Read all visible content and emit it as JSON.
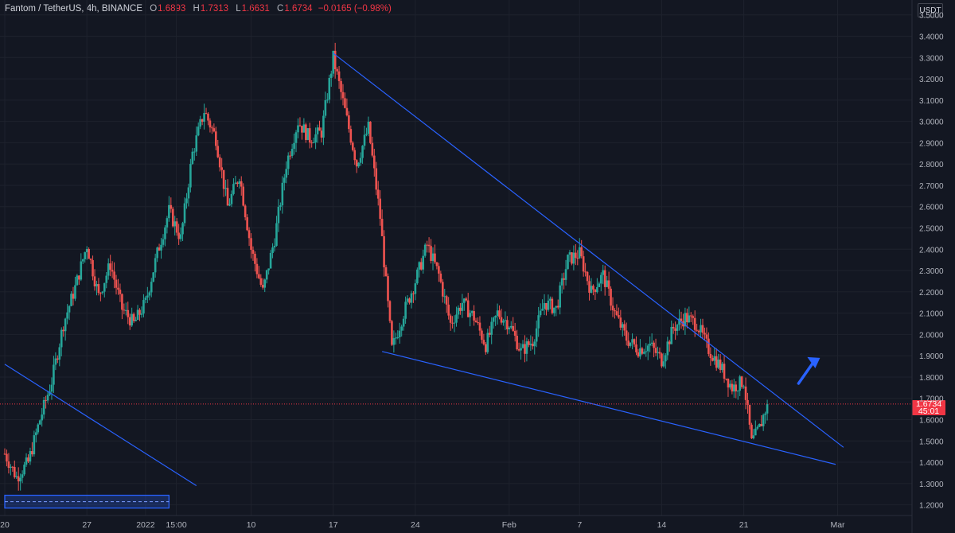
{
  "header": {
    "symbol": "Fantom / TetherUS, 4h, BINANCE",
    "open_label": "O",
    "open": "1.6893",
    "high_label": "H",
    "high": "1.7313",
    "low_label": "L",
    "low": "1.6631",
    "close_label": "C",
    "close": "1.6734",
    "change": "−0.0165 (−0.98%)"
  },
  "currency": "USDT",
  "last_price": {
    "value": "1.6734",
    "countdown": "45:01",
    "color": "#f23645"
  },
  "colors": {
    "background": "#131722",
    "up": "#26a69a",
    "down": "#ef5350",
    "trendline": "#2962ff",
    "grid": "#1e222d",
    "axis_text": "#b2b5be"
  },
  "chart_data": {
    "type": "candlestick",
    "interval": "4h",
    "exchange": "BINANCE",
    "y_axis": {
      "ylim": [
        1.15,
        3.57
      ],
      "ticks": [
        "1.2000",
        "1.3000",
        "1.4000",
        "1.5000",
        "1.6000",
        "1.7000",
        "1.8000",
        "1.9000",
        "2.0000",
        "2.1000",
        "2.2000",
        "2.3000",
        "2.4000",
        "2.5000",
        "2.6000",
        "2.7000",
        "2.8000",
        "2.9000",
        "3.0000",
        "3.1000",
        "3.2000",
        "3.3000",
        "3.4000",
        "3.5000"
      ]
    },
    "x_axis": {
      "start": "2021-12-20",
      "end": "2022-03-03",
      "ticks": [
        {
          "label": "20",
          "date": "2021-12-20T00:00"
        },
        {
          "label": "27",
          "date": "2021-12-27T00:00"
        },
        {
          "label": "2022",
          "date": "2022-01-01T00:00"
        },
        {
          "label": "15:00",
          "date": "2022-01-03T15:00"
        },
        {
          "label": "10",
          "date": "2022-01-10T00:00"
        },
        {
          "label": "17",
          "date": "2022-01-17T00:00"
        },
        {
          "label": "24",
          "date": "2022-01-24T00:00"
        },
        {
          "label": "Feb",
          "date": "2022-02-01T00:00"
        },
        {
          "label": "7",
          "date": "2022-02-07T00:00"
        },
        {
          "label": "14",
          "date": "2022-02-14T00:00"
        },
        {
          "label": "21",
          "date": "2022-02-21T00:00"
        },
        {
          "label": "Mar",
          "date": "2022-03-01T00:00"
        }
      ]
    },
    "price_path": [
      [
        "2021-12-20T00:00",
        1.44
      ],
      [
        "2021-12-21T00:00",
        1.33
      ],
      [
        "2021-12-22T00:00",
        1.4
      ],
      [
        "2021-12-23T00:00",
        1.6
      ],
      [
        "2021-12-24T00:00",
        1.78
      ],
      [
        "2021-12-25T00:00",
        2.05
      ],
      [
        "2021-12-26T00:00",
        2.22
      ],
      [
        "2021-12-27T00:00",
        2.42
      ],
      [
        "2021-12-28T00:00",
        2.18
      ],
      [
        "2021-12-29T00:00",
        2.33
      ],
      [
        "2021-12-30T00:00",
        2.12
      ],
      [
        "2021-12-31T00:00",
        2.05
      ],
      [
        "2022-01-01T00:00",
        2.15
      ],
      [
        "2022-01-02T00:00",
        2.38
      ],
      [
        "2022-01-03T00:00",
        2.58
      ],
      [
        "2022-01-04T00:00",
        2.45
      ],
      [
        "2022-01-05T00:00",
        2.85
      ],
      [
        "2022-01-06T00:00",
        3.05
      ],
      [
        "2022-01-07T00:00",
        2.92
      ],
      [
        "2022-01-08T00:00",
        2.6
      ],
      [
        "2022-01-09T00:00",
        2.75
      ],
      [
        "2022-01-10T00:00",
        2.4
      ],
      [
        "2022-01-11T00:00",
        2.2
      ],
      [
        "2022-01-12T00:00",
        2.45
      ],
      [
        "2022-01-13T00:00",
        2.8
      ],
      [
        "2022-01-14T00:00",
        3.0
      ],
      [
        "2022-01-15T00:00",
        2.92
      ],
      [
        "2022-01-16T00:00",
        2.95
      ],
      [
        "2022-01-17T00:00",
        3.3
      ],
      [
        "2022-01-18T00:00",
        3.05
      ],
      [
        "2022-01-19T00:00",
        2.8
      ],
      [
        "2022-01-20T00:00",
        2.97
      ],
      [
        "2022-01-21T00:00",
        2.55
      ],
      [
        "2022-01-22T00:00",
        1.93
      ],
      [
        "2022-01-23T00:00",
        2.1
      ],
      [
        "2022-01-24T00:00",
        2.25
      ],
      [
        "2022-01-25T00:00",
        2.42
      ],
      [
        "2022-01-26T00:00",
        2.28
      ],
      [
        "2022-01-27T00:00",
        2.05
      ],
      [
        "2022-01-28T00:00",
        2.15
      ],
      [
        "2022-01-29T00:00",
        2.08
      ],
      [
        "2022-01-30T00:00",
        1.95
      ],
      [
        "2022-01-31T00:00",
        2.1
      ],
      [
        "2022-02-01T00:00",
        2.05
      ],
      [
        "2022-02-02T00:00",
        1.92
      ],
      [
        "2022-02-03T00:00",
        1.97
      ],
      [
        "2022-02-04T00:00",
        2.15
      ],
      [
        "2022-02-05T00:00",
        2.12
      ],
      [
        "2022-02-06T00:00",
        2.35
      ],
      [
        "2022-02-07T00:00",
        2.38
      ],
      [
        "2022-02-08T00:00",
        2.2
      ],
      [
        "2022-02-09T00:00",
        2.28
      ],
      [
        "2022-02-10T00:00",
        2.1
      ],
      [
        "2022-02-11T00:00",
        1.98
      ],
      [
        "2022-02-12T00:00",
        1.93
      ],
      [
        "2022-02-13T00:00",
        1.95
      ],
      [
        "2022-02-14T00:00",
        1.88
      ],
      [
        "2022-02-15T00:00",
        2.03
      ],
      [
        "2022-02-16T00:00",
        2.08
      ],
      [
        "2022-02-17T00:00",
        2.05
      ],
      [
        "2022-02-18T00:00",
        1.93
      ],
      [
        "2022-02-19T00:00",
        1.85
      ],
      [
        "2022-02-20T00:00",
        1.75
      ],
      [
        "2022-02-21T00:00",
        1.78
      ],
      [
        "2022-02-21T16:00",
        1.49
      ],
      [
        "2022-02-22T08:00",
        1.56
      ],
      [
        "2022-02-23T00:00",
        1.6734
      ]
    ],
    "trendlines": [
      {
        "from": [
          "2022-01-17T00:00",
          3.32
        ],
        "to": [
          "2022-03-01T12:00",
          1.47
        ]
      },
      {
        "from": [
          "2022-01-21T04:00",
          1.92
        ],
        "to": [
          "2022-02-28T20:00",
          1.39
        ]
      },
      {
        "from": [
          "2021-12-20T00:00",
          1.86
        ],
        "to": [
          "2022-01-05T08:00",
          1.29
        ]
      }
    ],
    "arrow": {
      "from": [
        "2022-02-25T16:00",
        1.77
      ],
      "to": [
        "2022-02-27T12:00",
        1.89
      ]
    },
    "range_box": {
      "from": "2021-12-20T00:00",
      "to": "2022-01-03T00:00",
      "top": 1.245,
      "bottom": 1.185
    },
    "last_value": 1.6734
  }
}
